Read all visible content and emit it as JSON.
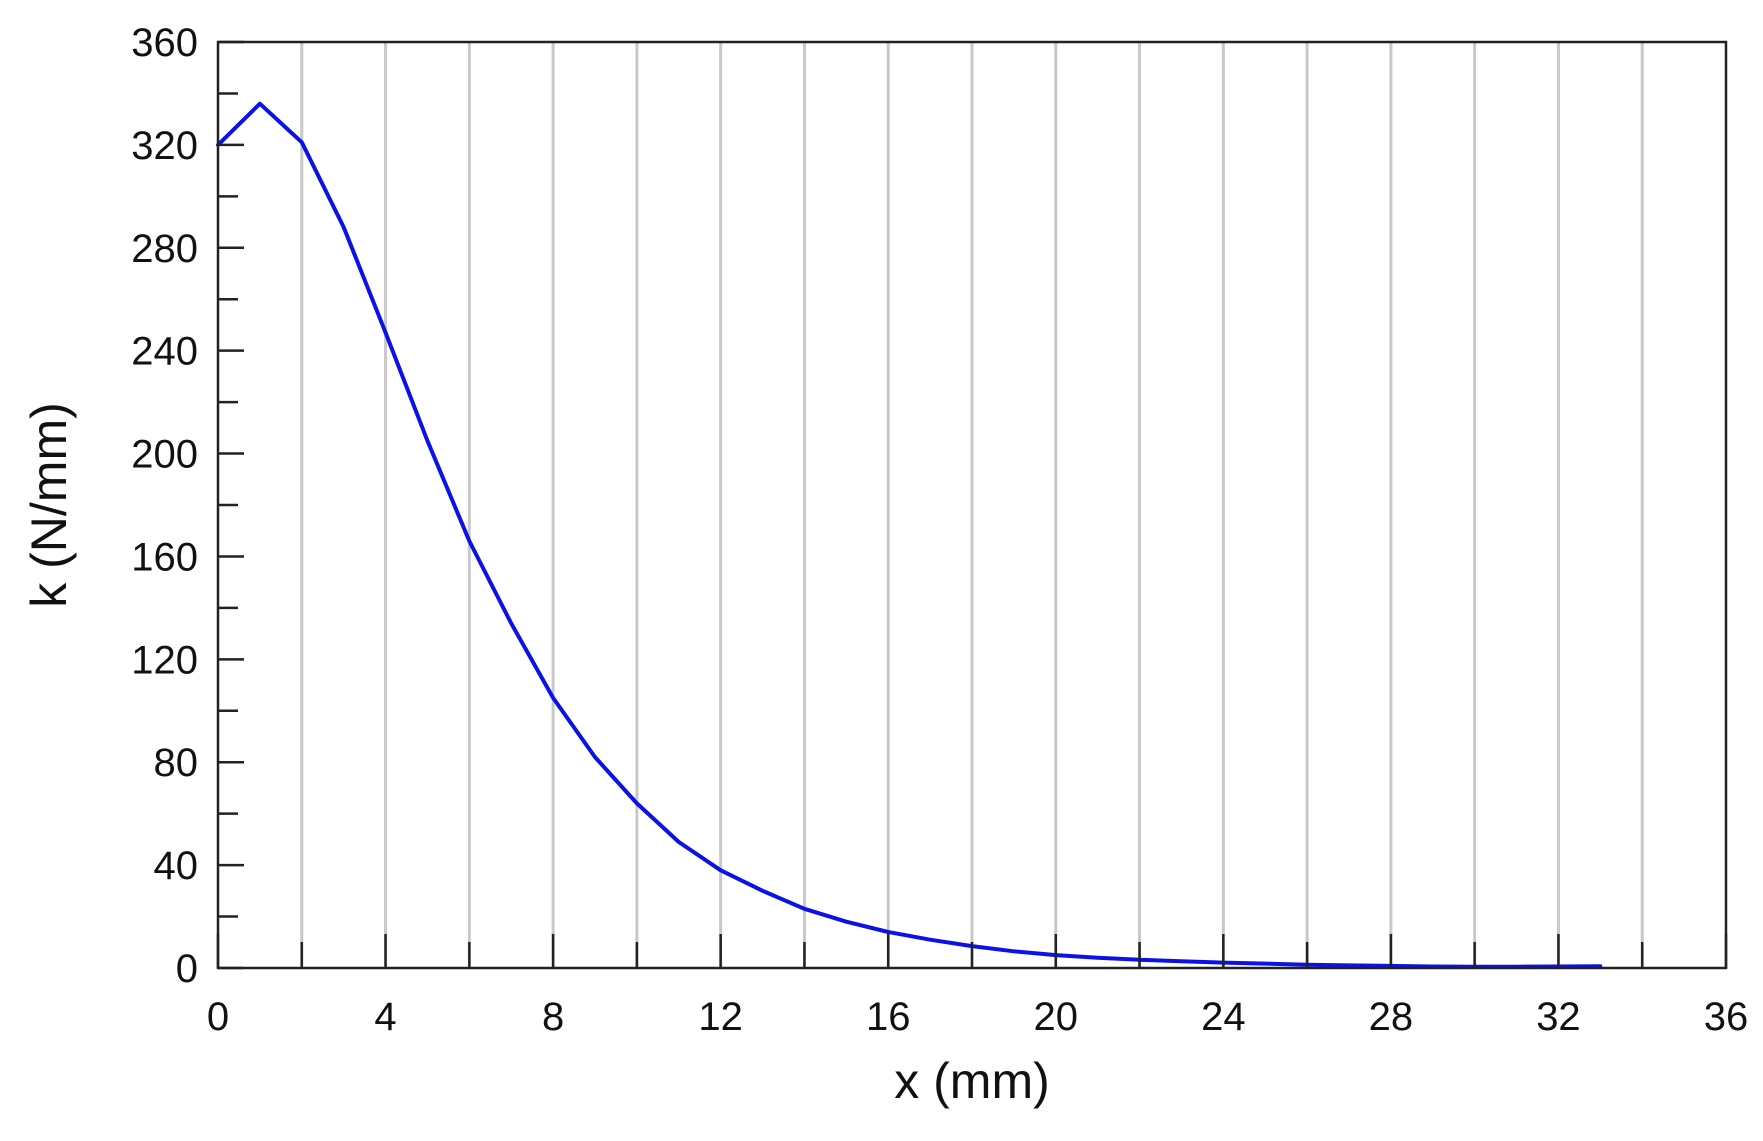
{
  "chart_data": {
    "type": "line",
    "title": "",
    "xlabel": "x (mm)",
    "ylabel": "k (N/mm)",
    "xlim": [
      0,
      36
    ],
    "ylim": [
      0,
      360
    ],
    "x_ticks": [
      0,
      4,
      8,
      12,
      16,
      20,
      24,
      28,
      32,
      36
    ],
    "y_ticks": [
      0,
      40,
      80,
      120,
      160,
      200,
      240,
      280,
      320,
      360
    ],
    "x_tick_labels": [
      "0",
      "4",
      "8",
      "12",
      "16",
      "20",
      "24",
      "28",
      "32",
      "36"
    ],
    "y_tick_labels": [
      "0",
      "40",
      "80",
      "120",
      "160",
      "200",
      "240",
      "280",
      "320",
      "360"
    ],
    "x_minor_step": 2,
    "y_minor_step": 20,
    "grid": {
      "vertical": true,
      "horizontal": false
    },
    "legend": "none",
    "series": [
      {
        "color": "#0a12e6",
        "x": [
          0,
          1,
          2,
          3,
          4,
          5,
          6,
          7,
          8,
          9,
          10,
          11,
          12,
          13,
          14,
          15,
          16,
          17,
          18,
          19,
          20,
          21,
          22,
          23,
          24,
          25,
          26,
          27,
          28,
          29,
          30,
          31,
          32,
          33
        ],
        "y": [
          320,
          336,
          321,
          288,
          247,
          205,
          166,
          134,
          105,
          82,
          64,
          49,
          38,
          30,
          23,
          18,
          14,
          11,
          8.5,
          6.5,
          5,
          4,
          3.2,
          2.6,
          2.1,
          1.7,
          1.3,
          1,
          0.8,
          0.6,
          0.5,
          0.5,
          0.6,
          0.7
        ]
      }
    ]
  }
}
